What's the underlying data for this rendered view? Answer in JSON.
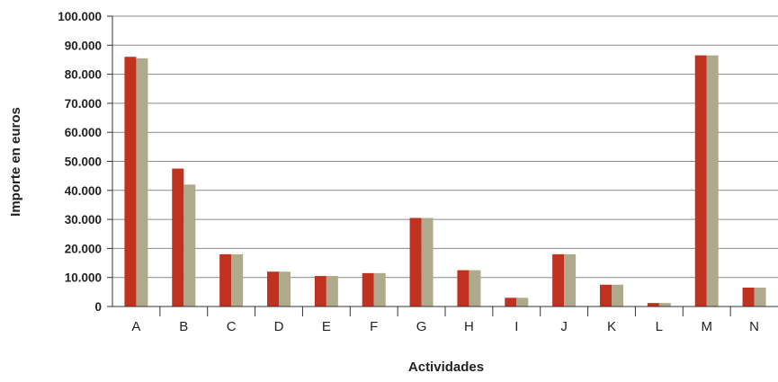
{
  "chart_data": {
    "type": "bar",
    "title": "",
    "xlabel": "Actividades",
    "ylabel": "Importe en euros",
    "ylim": [
      0,
      100000
    ],
    "yticks": [
      0,
      10000,
      20000,
      30000,
      40000,
      50000,
      60000,
      70000,
      80000,
      90000,
      100000
    ],
    "ytick_labels": [
      "0",
      "10.000",
      "20.000",
      "30.000",
      "40.000",
      "50.000",
      "60.000",
      "70.000",
      "80.000",
      "90.000",
      "100.000"
    ],
    "grid": true,
    "legend": "none",
    "categories": [
      "A",
      "B",
      "C",
      "D",
      "E",
      "F",
      "G",
      "H",
      "I",
      "J",
      "K",
      "L",
      "M",
      "N"
    ],
    "series": [
      {
        "color": "#c0311f",
        "values": [
          86000,
          47500,
          18000,
          12000,
          10500,
          11500,
          30500,
          12500,
          3000,
          18000,
          7500,
          1200,
          86500,
          6500
        ]
      },
      {
        "color": "#b0aa8c",
        "values": [
          85500,
          42000,
          18000,
          12000,
          10500,
          11500,
          30500,
          12500,
          3000,
          18000,
          7500,
          1200,
          86500,
          6500
        ]
      }
    ]
  }
}
